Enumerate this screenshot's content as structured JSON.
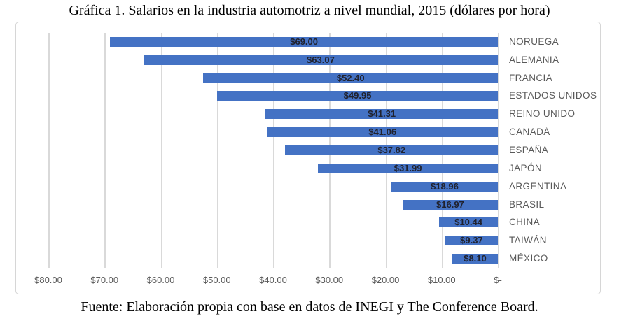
{
  "title": "Gráfica 1. Salarios en la industria automotriz a nivel mundial, 2015 (dólares por hora)",
  "source": "Fuente: Elaboración propia con base en datos de INEGI y The Conference Board.",
  "chart_data": {
    "type": "bar",
    "orientation": "horizontal",
    "axis_reversed": true,
    "title": "Gráfica 1. Salarios en la industria automotriz a nivel mundial, 2015 (dólares por hora)",
    "xlabel": "",
    "ylabel": "",
    "xlim": [
      80,
      0
    ],
    "grid": true,
    "categories": [
      "NORUEGA",
      "ALEMANIA",
      "FRANCIA",
      "ESTADOS UNIDOS",
      "REINO UNIDO",
      "CANADÁ",
      "ESPAÑA",
      "JAPÓN",
      "ARGENTINA",
      "BRASIL",
      "CHINA",
      "TAIWÁN",
      "MÉXICO"
    ],
    "values": [
      69.0,
      63.07,
      52.4,
      49.95,
      41.31,
      41.06,
      37.82,
      31.99,
      18.96,
      16.97,
      10.44,
      9.37,
      8.1
    ],
    "data_labels": [
      "$69.00",
      "$63.07",
      "$52.40",
      "$49.95",
      "$41.31",
      "$41.06",
      "$37.82",
      "$31.99",
      "$18.96",
      "$16.97",
      "$10.44",
      "$9.37",
      "$8.10"
    ],
    "x_ticks": [
      {
        "value": 80,
        "label": "$80.00"
      },
      {
        "value": 70,
        "label": "$70.00"
      },
      {
        "value": 60,
        "label": "$60.00"
      },
      {
        "value": 50,
        "label": "$50.00"
      },
      {
        "value": 40,
        "label": "$40.00"
      },
      {
        "value": 30,
        "label": "$30.00"
      },
      {
        "value": 20,
        "label": "$20.00"
      },
      {
        "value": 10,
        "label": "$10.00"
      },
      {
        "value": 0,
        "label": "$-"
      }
    ],
    "bar_color": "#4472C4",
    "gridline_color": "#D9D9D9",
    "axis_label_color": "#595959",
    "category_label_color": "#595959",
    "data_label_color": "#20222E"
  }
}
